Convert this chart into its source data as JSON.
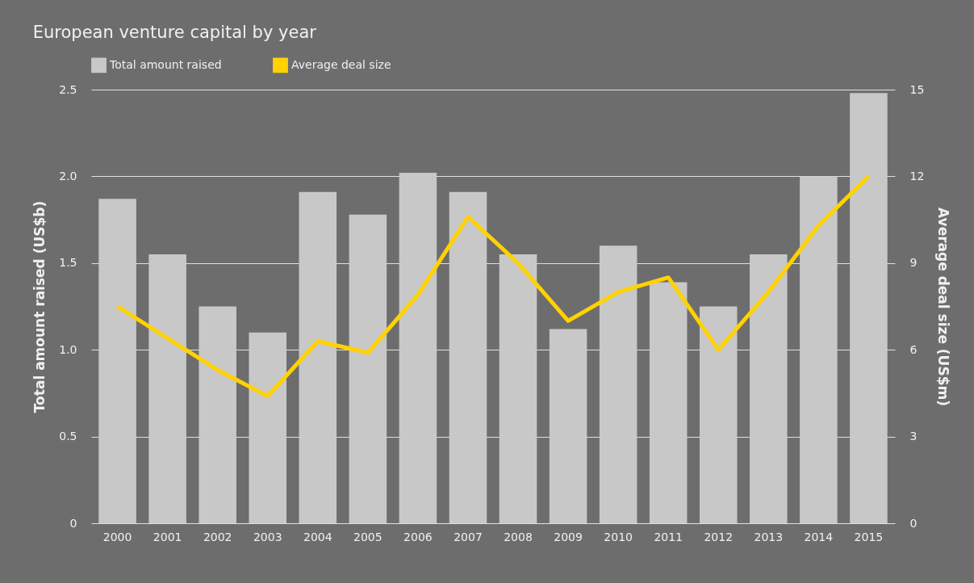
{
  "chart_data": {
    "type": "bar",
    "title": "European venture capital by year",
    "categories": [
      "2000",
      "2001",
      "2002",
      "2003",
      "2004",
      "2005",
      "2006",
      "2007",
      "2008",
      "2009",
      "2010",
      "2011",
      "2012",
      "2013",
      "2014",
      "2015"
    ],
    "series": [
      {
        "name": "Total amount raised",
        "color": "#c8c8c8",
        "values": [
          1.87,
          1.55,
          1.25,
          1.1,
          1.91,
          1.78,
          2.02,
          1.91,
          1.55,
          1.12,
          1.6,
          1.39,
          1.25,
          1.55,
          2.0,
          2.48
        ]
      },
      {
        "name": "Average deal size",
        "type": "line",
        "axis": "y2",
        "color": "#ffd200",
        "values": [
          7.5,
          6.4,
          5.3,
          4.4,
          6.3,
          5.9,
          7.9,
          10.6,
          9.0,
          7.0,
          8.0,
          8.5,
          6.0,
          8.0,
          10.3,
          12.0
        ]
      }
    ],
    "ylabel": "Total amount raised (US$b)",
    "y2label": "Average deal size (US$m)",
    "ylim": [
      0,
      2.5
    ],
    "yticks": [
      0,
      0.5,
      {
        "value": 1,
        "label": "1.0"
      },
      1.5,
      {
        "value": 2,
        "label": "2.0"
      },
      2.5
    ],
    "y2lim": [
      0,
      15
    ],
    "y2ticks": [
      0,
      3,
      6,
      9,
      12,
      15
    ],
    "grid": "y",
    "legend": "top left",
    "marker": "none",
    "line_style": "solid"
  }
}
